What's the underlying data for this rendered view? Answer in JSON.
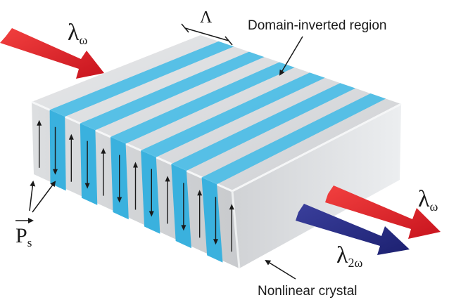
{
  "labels": {
    "domain_inverted_region": "Domain-inverted region",
    "nonlinear_crystal": "Nonlinear crystal",
    "period_symbol": "Λ",
    "polarization_main": "P",
    "polarization_sub": "s",
    "input_lambda": "λ",
    "input_sub": "ω",
    "output_lambda": "λ",
    "output_sub": "ω",
    "shg_lambda": "λ",
    "shg_sub": "2ω"
  },
  "colors": {
    "crystal_top": "#d9dadc",
    "crystal_side": "#c4c6c9",
    "crystal_front": "#d2d4d6",
    "domain_blue": "#4bbde6",
    "domain_blue_side": "#3ab1de",
    "fundamental_beam": "#e8232d",
    "second_harmonic_beam": "#2a2f86",
    "annotation": "#1a1a1a"
  },
  "domain_count": 6,
  "polarization_arrows": [
    "up",
    "down",
    "up",
    "down",
    "up",
    "down",
    "up",
    "down",
    "up",
    "down",
    "up",
    "down",
    "up"
  ]
}
